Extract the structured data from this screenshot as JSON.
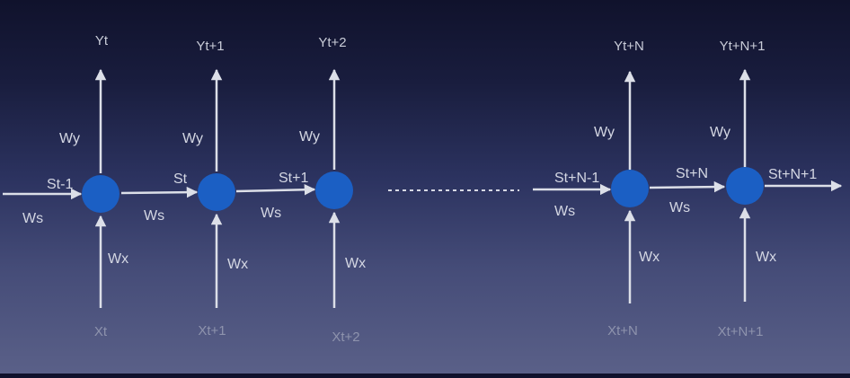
{
  "diagram": {
    "cells": [
      {
        "id": "t",
        "y": "Yt",
        "x": "Xt",
        "s_in": "St-1",
        "w_y": "Wy",
        "w_x": "Wx",
        "w_s": "Ws"
      },
      {
        "id": "t1",
        "y": "Yt+1",
        "x": "Xt+1",
        "s_in": "St",
        "w_y": "Wy",
        "w_x": "Wx",
        "w_s": "Ws"
      },
      {
        "id": "t2",
        "y": "Yt+2",
        "x": "Xt+2",
        "s_in": "St+1",
        "w_y": "Wy",
        "w_x": "Wx",
        "w_s": "Ws"
      },
      {
        "id": "tN",
        "y": "Yt+N",
        "x": "Xt+N",
        "s_in": "St+N-1",
        "w_y": "Wy",
        "w_x": "Wx",
        "w_s": "Ws"
      },
      {
        "id": "tN1",
        "y": "Yt+N+1",
        "x": "Xt+N+1",
        "s_in": "St+N",
        "w_y": "Wy",
        "w_x": "Wx",
        "w_s": "Ws"
      }
    ],
    "final_state": "St+N+1",
    "colors": {
      "node": "#1b5fc4",
      "edge": "#dcdfe8",
      "text": "#d4d7e3"
    }
  }
}
